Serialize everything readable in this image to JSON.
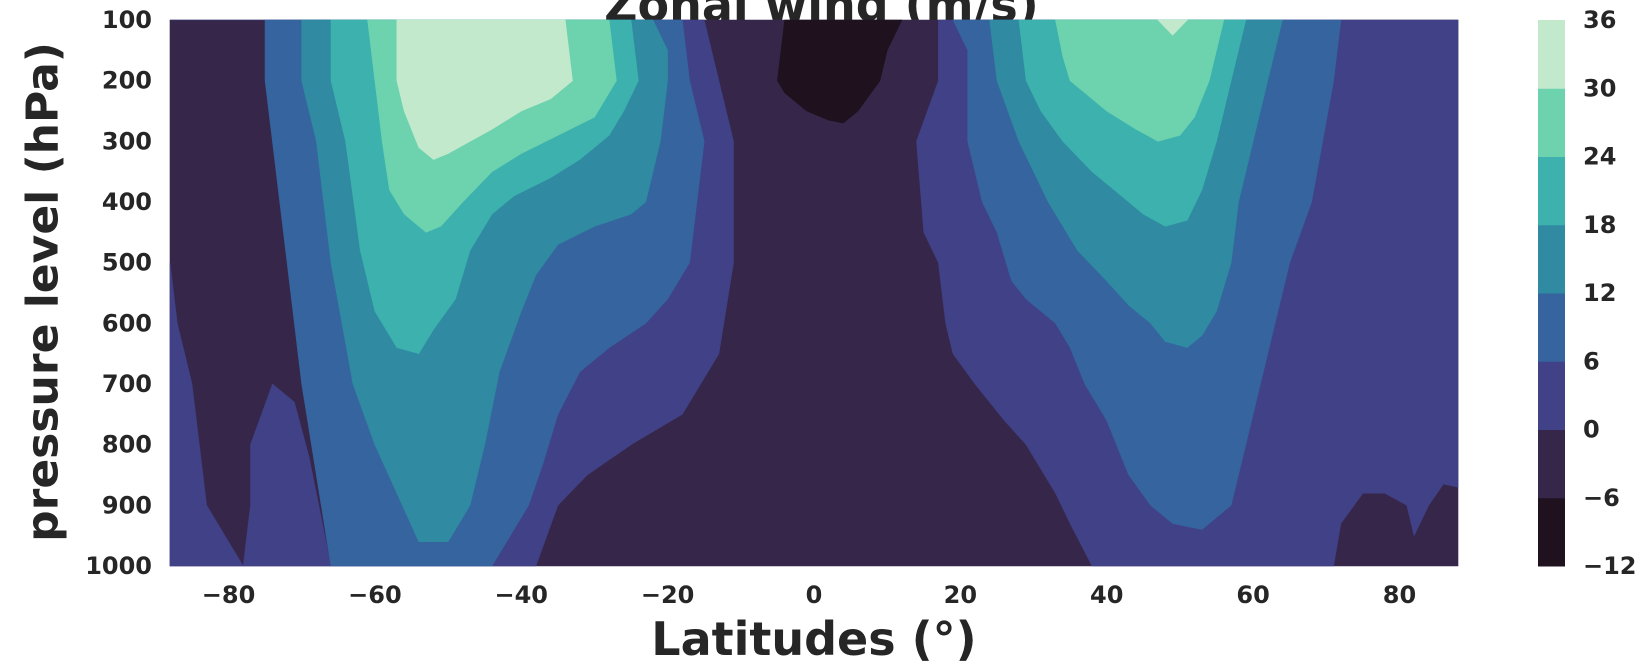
{
  "chart_data": {
    "type": "contourf",
    "title": "Zonal wind (m/s)",
    "xlabel": "Latitudes (°)",
    "ylabel": "pressure level (hPa)",
    "x_ticks": [
      -80,
      -60,
      -40,
      -20,
      0,
      20,
      40,
      60,
      80
    ],
    "x_tick_labels": [
      "−80",
      "−60",
      "−40",
      "−20",
      "0",
      "20",
      "40",
      "60",
      "80"
    ],
    "xlim": [
      -88,
      88
    ],
    "y_ticks": [
      100,
      200,
      300,
      400,
      500,
      600,
      700,
      800,
      900,
      1000
    ],
    "y_tick_labels": [
      "100",
      "200",
      "300",
      "400",
      "500",
      "600",
      "700",
      "800",
      "900",
      "1000"
    ],
    "ylim": [
      1000,
      100
    ],
    "colorbar": {
      "levels": [
        -12,
        -6,
        0,
        6,
        12,
        18,
        24,
        30,
        36
      ],
      "tick_labels": [
        "−12",
        "−6",
        "0",
        "6",
        "12",
        "18",
        "24",
        "30",
        "36"
      ],
      "colors": [
        "#1f121e",
        "#36264a",
        "#404186",
        "#35649e",
        "#2f8aa2",
        "#3cb1ad",
        "#6dd2ae",
        "#c2e9cc"
      ]
    },
    "regions": [
      {
        "range": [
          -6,
          0
        ],
        "polygon": [
          [
            -88,
            100
          ],
          [
            88,
            100
          ],
          [
            88,
            1000
          ],
          [
            -88,
            1000
          ]
        ]
      },
      {
        "range": [
          0,
          6
        ],
        "polygon": [
          [
            -88,
            100
          ],
          [
            -15,
            100
          ],
          [
            -11,
            300
          ],
          [
            -11,
            500
          ],
          [
            -13,
            650
          ],
          [
            -18,
            750
          ],
          [
            -25,
            800
          ],
          [
            -31,
            850
          ],
          [
            -35,
            900
          ],
          [
            -38,
            1000
          ],
          [
            -88,
            1000
          ],
          [
            -88,
            500
          ],
          [
            -87,
            600
          ],
          [
            -85,
            700
          ],
          [
            -84,
            800
          ],
          [
            -83,
            900
          ],
          [
            -78,
            1000
          ],
          [
            -77,
            900
          ],
          [
            -77,
            800
          ],
          [
            -74,
            700
          ],
          [
            -71,
            730
          ],
          [
            -69,
            820
          ],
          [
            -66,
            1000
          ],
          [
            -53,
            1000
          ],
          [
            -53,
            850
          ],
          [
            -60,
            700
          ],
          [
            -70,
            400
          ],
          [
            -75,
            200
          ],
          [
            -75,
            100
          ]
        ]
      },
      {
        "range": [
          0,
          6
        ],
        "polygon": [
          [
            17,
            100
          ],
          [
            88,
            100
          ],
          [
            88,
            870
          ],
          [
            86,
            865
          ],
          [
            84,
            900
          ],
          [
            82,
            950
          ],
          [
            81,
            900
          ],
          [
            78,
            880
          ],
          [
            75,
            880
          ],
          [
            72,
            930
          ],
          [
            71,
            1000
          ],
          [
            38,
            1000
          ],
          [
            35,
            930
          ],
          [
            33,
            880
          ],
          [
            29,
            800
          ],
          [
            26,
            760
          ],
          [
            22,
            700
          ],
          [
            19,
            650
          ],
          [
            18,
            600
          ],
          [
            17,
            500
          ],
          [
            15,
            450
          ],
          [
            14,
            300
          ],
          [
            17,
            200
          ]
        ]
      },
      {
        "range": [
          6,
          12
        ],
        "polygon": [
          [
            -75,
            100
          ],
          [
            -18,
            100
          ],
          [
            -17,
            200
          ],
          [
            -15,
            300
          ],
          [
            -16,
            400
          ],
          [
            -17,
            500
          ],
          [
            -20,
            560
          ],
          [
            -23,
            600
          ],
          [
            -28,
            640
          ],
          [
            -32,
            680
          ],
          [
            -35,
            750
          ],
          [
            -37,
            830
          ],
          [
            -39,
            900
          ],
          [
            -44,
            1000
          ],
          [
            -66,
            1000
          ],
          [
            -70,
            700
          ],
          [
            -72,
            500
          ],
          [
            -75,
            200
          ]
        ]
      },
      {
        "range": [
          6,
          12
        ],
        "polygon": [
          [
            19,
            100
          ],
          [
            72,
            100
          ],
          [
            71,
            200
          ],
          [
            68,
            400
          ],
          [
            65,
            500
          ],
          [
            63,
            600
          ],
          [
            61,
            700
          ],
          [
            59,
            800
          ],
          [
            57,
            900
          ],
          [
            53,
            940
          ],
          [
            49,
            930
          ],
          [
            46,
            900
          ],
          [
            43,
            850
          ],
          [
            40,
            760
          ],
          [
            37,
            700
          ],
          [
            35,
            640
          ],
          [
            33,
            600
          ],
          [
            29,
            560
          ],
          [
            27,
            530
          ],
          [
            25,
            450
          ],
          [
            23,
            400
          ],
          [
            21,
            300
          ],
          [
            21,
            150
          ]
        ]
      },
      {
        "range": [
          12,
          18
        ],
        "polygon": [
          [
            -70,
            100
          ],
          [
            -22,
            100
          ],
          [
            -20,
            150
          ],
          [
            -20,
            200
          ],
          [
            -21,
            300
          ],
          [
            -23,
            400
          ],
          [
            -25,
            420
          ],
          [
            -30,
            440
          ],
          [
            -35,
            470
          ],
          [
            -38,
            520
          ],
          [
            -40,
            580
          ],
          [
            -43,
            680
          ],
          [
            -45,
            800
          ],
          [
            -47,
            900
          ],
          [
            -50,
            960
          ],
          [
            -54,
            960
          ],
          [
            -57,
            880
          ],
          [
            -60,
            800
          ],
          [
            -63,
            700
          ],
          [
            -66,
            500
          ],
          [
            -68,
            300
          ],
          [
            -70,
            200
          ]
        ]
      },
      {
        "range": [
          12,
          18
        ],
        "polygon": [
          [
            24,
            100
          ],
          [
            64,
            100
          ],
          [
            62,
            200
          ],
          [
            60,
            300
          ],
          [
            58,
            400
          ],
          [
            57,
            500
          ],
          [
            55,
            580
          ],
          [
            53,
            620
          ],
          [
            51,
            640
          ],
          [
            48,
            630
          ],
          [
            46,
            600
          ],
          [
            43,
            570
          ],
          [
            40,
            530
          ],
          [
            36,
            480
          ],
          [
            32,
            400
          ],
          [
            28,
            300
          ],
          [
            25,
            200
          ]
        ]
      },
      {
        "range": [
          18,
          24
        ],
        "polygon": [
          [
            -66,
            100
          ],
          [
            -25,
            100
          ],
          [
            -24,
            200
          ],
          [
            -26,
            250
          ],
          [
            -28,
            290
          ],
          [
            -32,
            330
          ],
          [
            -36,
            360
          ],
          [
            -41,
            390
          ],
          [
            -44,
            420
          ],
          [
            -47,
            480
          ],
          [
            -49,
            560
          ],
          [
            -52,
            610
          ],
          [
            -54,
            650
          ],
          [
            -57,
            640
          ],
          [
            -60,
            580
          ],
          [
            -62,
            480
          ],
          [
            -64,
            300
          ],
          [
            -66,
            200
          ]
        ]
      },
      {
        "range": [
          18,
          24
        ],
        "polygon": [
          [
            28,
            100
          ],
          [
            59,
            100
          ],
          [
            57,
            200
          ],
          [
            55,
            300
          ],
          [
            53,
            380
          ],
          [
            51,
            430
          ],
          [
            48,
            440
          ],
          [
            45,
            420
          ],
          [
            42,
            390
          ],
          [
            38,
            350
          ],
          [
            34,
            300
          ],
          [
            31,
            250
          ],
          [
            29,
            200
          ]
        ]
      },
      {
        "range": [
          24,
          30
        ],
        "polygon": [
          [
            -61,
            100
          ],
          [
            -28,
            100
          ],
          [
            -27,
            200
          ],
          [
            -30,
            260
          ],
          [
            -35,
            290
          ],
          [
            -40,
            320
          ],
          [
            -44,
            350
          ],
          [
            -48,
            400
          ],
          [
            -51,
            440
          ],
          [
            -53,
            450
          ],
          [
            -56,
            420
          ],
          [
            -58,
            380
          ],
          [
            -59,
            300
          ],
          [
            -60,
            200
          ]
        ]
      },
      {
        "range": [
          24,
          30
        ],
        "polygon": [
          [
            33,
            100
          ],
          [
            56,
            100
          ],
          [
            54,
            200
          ],
          [
            52,
            260
          ],
          [
            50,
            290
          ],
          [
            47,
            300
          ],
          [
            44,
            280
          ],
          [
            40,
            250
          ],
          [
            37,
            220
          ],
          [
            35,
            200
          ],
          [
            34,
            160
          ]
        ]
      },
      {
        "range": [
          30,
          36
        ],
        "polygon": [
          [
            -57,
            100
          ],
          [
            -34,
            100
          ],
          [
            -33,
            200
          ],
          [
            -36,
            230
          ],
          [
            -40,
            250
          ],
          [
            -44,
            280
          ],
          [
            -47,
            300
          ],
          [
            -50,
            320
          ],
          [
            -52,
            330
          ],
          [
            -54,
            310
          ],
          [
            -56,
            250
          ],
          [
            -57,
            200
          ]
        ]
      },
      {
        "range": [
          30,
          36
        ],
        "polygon": [
          [
            47,
            100
          ],
          [
            51,
            100
          ],
          [
            49,
            125
          ]
        ]
      },
      {
        "range": [
          -12,
          -6
        ],
        "polygon": [
          [
            -4,
            100
          ],
          [
            12,
            100
          ],
          [
            10,
            150
          ],
          [
            9,
            200
          ],
          [
            6,
            250
          ],
          [
            4,
            270
          ],
          [
            2,
            265
          ],
          [
            -1,
            250
          ],
          [
            -4,
            220
          ],
          [
            -5,
            200
          ]
        ]
      }
    ]
  }
}
